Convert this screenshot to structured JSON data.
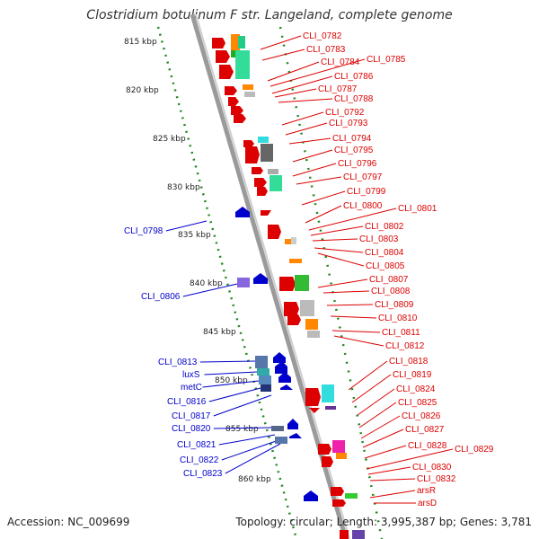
{
  "title": "Clostridium botulinum F str. Langeland, complete genome",
  "footer": {
    "accession": "Accession: NC_009699",
    "topology": "Topology: circular; Length: 3,995,387 bp; Genes: 3,781"
  },
  "colors": {
    "forward": "#dd0000",
    "reverse": "#0000cc",
    "backbone": "#999999",
    "scale_dots": "#228822"
  },
  "kbp_ticks": [
    "815 kbp",
    "820 kbp",
    "825 kbp",
    "830 kbp",
    "835 kbp",
    "840 kbp",
    "845 kbp",
    "850 kbp",
    "855 kbp",
    "860 kbp"
  ],
  "right_labels": [
    "CLI_0782",
    "CLI_0783",
    "CLI_0784",
    "CLI_0785",
    "CLI_0786",
    "CLI_0787",
    "CLI_0788",
    "CLI_0792",
    "CLI_0793",
    "CLI_0794",
    "CLI_0795",
    "CLI_0796",
    "CLI_0797",
    "CLI_0799",
    "CLI_0800",
    "CLI_0801",
    "CLI_0802",
    "CLI_0803",
    "CLI_0804",
    "CLI_0805",
    "CLI_0807",
    "CLI_0808",
    "CLI_0809",
    "CLI_0810",
    "CLI_0811",
    "CLI_0812",
    "CLI_0818",
    "CLI_0819",
    "CLI_0824",
    "CLI_0825",
    "CLI_0826",
    "CLI_0827",
    "CLI_0828",
    "CLI_0829",
    "CLI_0830",
    "CLI_0832",
    "arsR",
    "arsD"
  ],
  "left_labels": [
    "CLI_0798",
    "CLI_0806",
    "CLI_0813",
    "luxS",
    "metC",
    "CLI_0816",
    "CLI_0817",
    "CLI_0820",
    "CLI_0821",
    "CLI_0822",
    "CLI_0823"
  ]
}
